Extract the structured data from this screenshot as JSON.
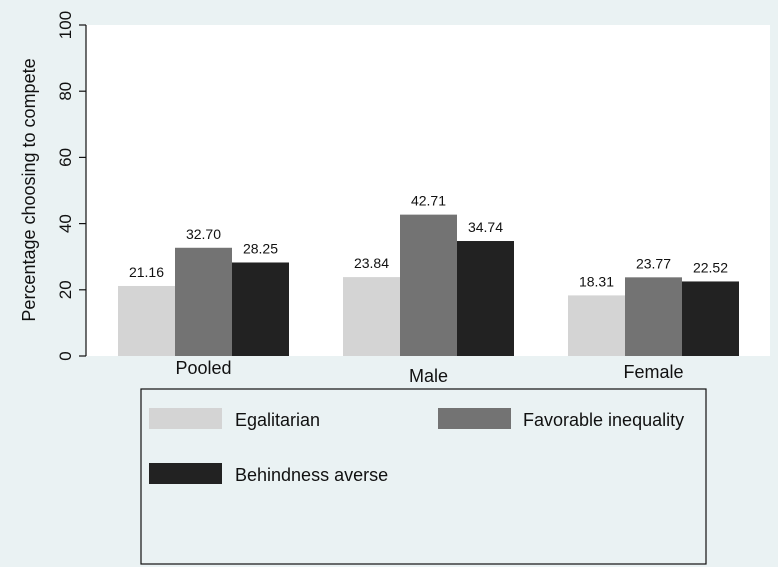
{
  "chart_data": {
    "type": "bar",
    "categories": [
      "Pooled",
      "Male",
      "Female"
    ],
    "series": [
      {
        "name": "Egalitarian",
        "color": "#d4d4d4",
        "values": [
          21.16,
          23.84,
          18.31
        ]
      },
      {
        "name": "Favorable inequality",
        "color": "#737373",
        "values": [
          32.7,
          42.71,
          23.77
        ]
      },
      {
        "name": "Behindness averse",
        "color": "#222222",
        "values": [
          28.25,
          34.74,
          22.52
        ]
      }
    ],
    "value_labels": [
      [
        "21.16",
        "32.70",
        "28.25"
      ],
      [
        "23.84",
        "42.71",
        "34.74"
      ],
      [
        "18.31",
        "23.77",
        "22.52"
      ]
    ],
    "ylabel": "Percentage choosing to compete",
    "ylim": [
      0,
      100
    ],
    "yticks": [
      "0",
      "20",
      "40",
      "60",
      "80",
      "100"
    ],
    "grid": false,
    "legend_position": "bottom"
  }
}
